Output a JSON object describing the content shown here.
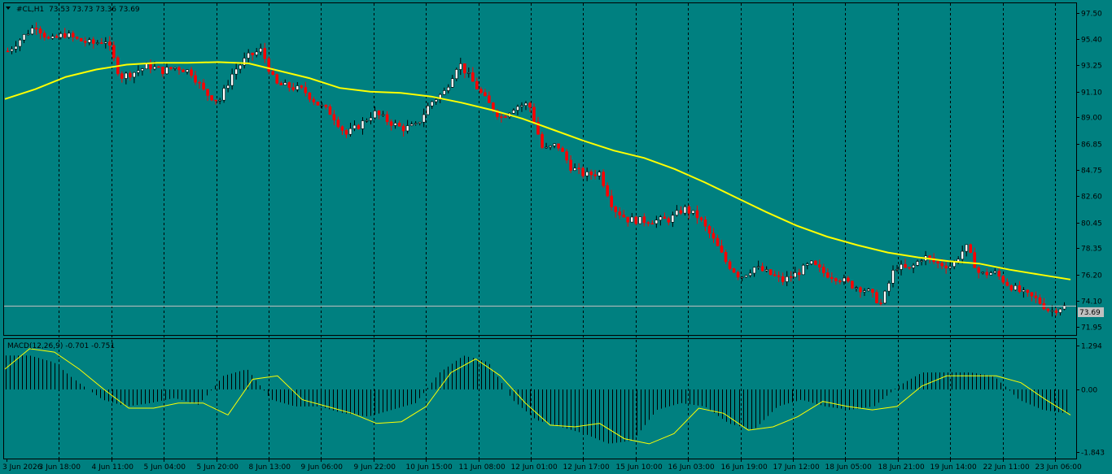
{
  "header": {
    "symbol_timeframe": "#CL,H1",
    "ohlc": "73.53 73.73 73.36 73.69"
  },
  "indicator": {
    "label": "MACD(12,26,9) -0.701 -0.751"
  },
  "colors": {
    "background": "#008080",
    "bull_candle": "#000000",
    "bear_candle": "#ff0000",
    "moving_average": "#ffff00",
    "macd_signal": "#ffff00",
    "histogram": "#000000",
    "bid_line": "#c0c0c0",
    "grid": "#000000"
  },
  "chart_data": [
    {
      "type": "candlestick",
      "symbol": "#CL",
      "timeframe": "H1",
      "last_price": "73.69",
      "y_ticks": [
        "97.50",
        "95.40",
        "93.25",
        "91.10",
        "89.00",
        "86.85",
        "84.75",
        "82.60",
        "80.45",
        "78.35",
        "76.20",
        "74.10",
        "71.95"
      ],
      "ylim": [
        71.95,
        97.5
      ],
      "x_ticks": [
        "3 Jun 2026",
        "3 Jun 18:00",
        "4 Jun 11:00",
        "5 Jun 04:00",
        "5 Jun 20:00",
        "8 Jun 13:00",
        "9 Jun 06:00",
        "9 Jun 22:00",
        "10 Jun 15:00",
        "11 Jun 08:00",
        "12 Jun 01:00",
        "12 Jun 17:00",
        "15 Jun 10:00",
        "16 Jun 03:00",
        "16 Jun 19:00",
        "17 Jun 12:00",
        "18 Jun 05:00",
        "18 Jun 21:00",
        "19 Jun 14:00",
        "22 Jun 11:00",
        "23 Jun 06:00"
      ],
      "close_path": [
        94.4,
        95.5,
        96.5,
        95.2,
        95.8,
        95.3,
        95.0,
        95.3,
        92.3,
        92.7,
        93.2,
        92.8,
        93.1,
        92.7,
        91.0,
        90.3,
        92.7,
        93.9,
        94.5,
        91.7,
        91.5,
        91.2,
        90.1,
        89.3,
        87.6,
        88.4,
        89.4,
        88.7,
        88.1,
        88.3,
        90.2,
        91.1,
        93.5,
        91.9,
        90.3,
        89.0,
        89.9,
        90.1,
        86.3,
        86.8,
        84.9,
        84.3,
        84.5,
        81.6,
        80.7,
        80.6,
        80.6,
        80.7,
        81.6,
        80.9,
        79.2,
        77.2,
        76.0,
        76.8,
        76.3,
        75.7,
        76.3,
        77.1,
        76.3,
        75.9,
        75.3,
        74.9,
        73.8,
        76.9,
        76.6,
        77.7,
        77.1,
        76.9,
        78.5,
        76.2,
        76.4,
        75.4,
        74.7,
        74.2,
        73.2,
        73.69
      ],
      "series": [
        {
          "name": "Moving Average",
          "values": [
            90.5,
            91.3,
            92.3,
            92.9,
            93.3,
            93.45,
            93.45,
            93.5,
            93.4,
            92.8,
            92.2,
            91.4,
            91.1,
            91.0,
            90.7,
            90.2,
            89.6,
            88.9,
            88.0,
            87.1,
            86.3,
            85.7,
            84.8,
            83.7,
            82.5,
            81.3,
            80.2,
            79.3,
            78.6,
            78.0,
            77.6,
            77.3,
            77.1,
            76.6,
            76.2,
            75.8
          ]
        },
        {
          "name": "Bid",
          "values": [
            73.69
          ]
        }
      ]
    },
    {
      "type": "bar",
      "title": "MACD(12,26,9)",
      "main_value": "-0.701",
      "signal_value": "-0.751",
      "y_ticks": [
        "1.294",
        "0.00",
        "-1.843"
      ],
      "ylim": [
        -1.843,
        1.294
      ],
      "series": [
        {
          "name": "MACD",
          "values": [
            1.0,
            1.0,
            0.8,
            0.2,
            -0.3,
            -0.5,
            -0.4,
            -0.25,
            -0.45,
            0.4,
            0.6,
            -0.3,
            -0.5,
            -0.5,
            -0.7,
            -0.8,
            -0.6,
            -0.4,
            0.5,
            1.0,
            0.8,
            -0.3,
            -0.9,
            -1.1,
            -1.3,
            -1.6,
            -1.5,
            -0.6,
            -0.4,
            -0.5,
            -1.0,
            -1.2,
            -0.5,
            -0.3,
            -0.5,
            -0.6,
            -0.5,
            0.1,
            0.5,
            0.5,
            0.5,
            0.4,
            -0.3,
            -0.6,
            -0.701
          ]
        },
        {
          "name": "Signal",
          "values": [
            0.6,
            1.2,
            1.1,
            0.6,
            0.0,
            -0.55,
            -0.55,
            -0.4,
            -0.4,
            -0.75,
            0.3,
            0.4,
            -0.3,
            -0.5,
            -0.7,
            -1.0,
            -0.95,
            -0.5,
            0.5,
            0.9,
            0.4,
            -0.4,
            -1.05,
            -1.1,
            -1.0,
            -1.45,
            -1.6,
            -1.3,
            -0.55,
            -0.7,
            -1.2,
            -1.1,
            -0.8,
            -0.35,
            -0.5,
            -0.6,
            -0.5,
            0.1,
            0.4,
            0.4,
            0.4,
            0.2,
            -0.3,
            -0.751
          ]
        }
      ]
    }
  ]
}
